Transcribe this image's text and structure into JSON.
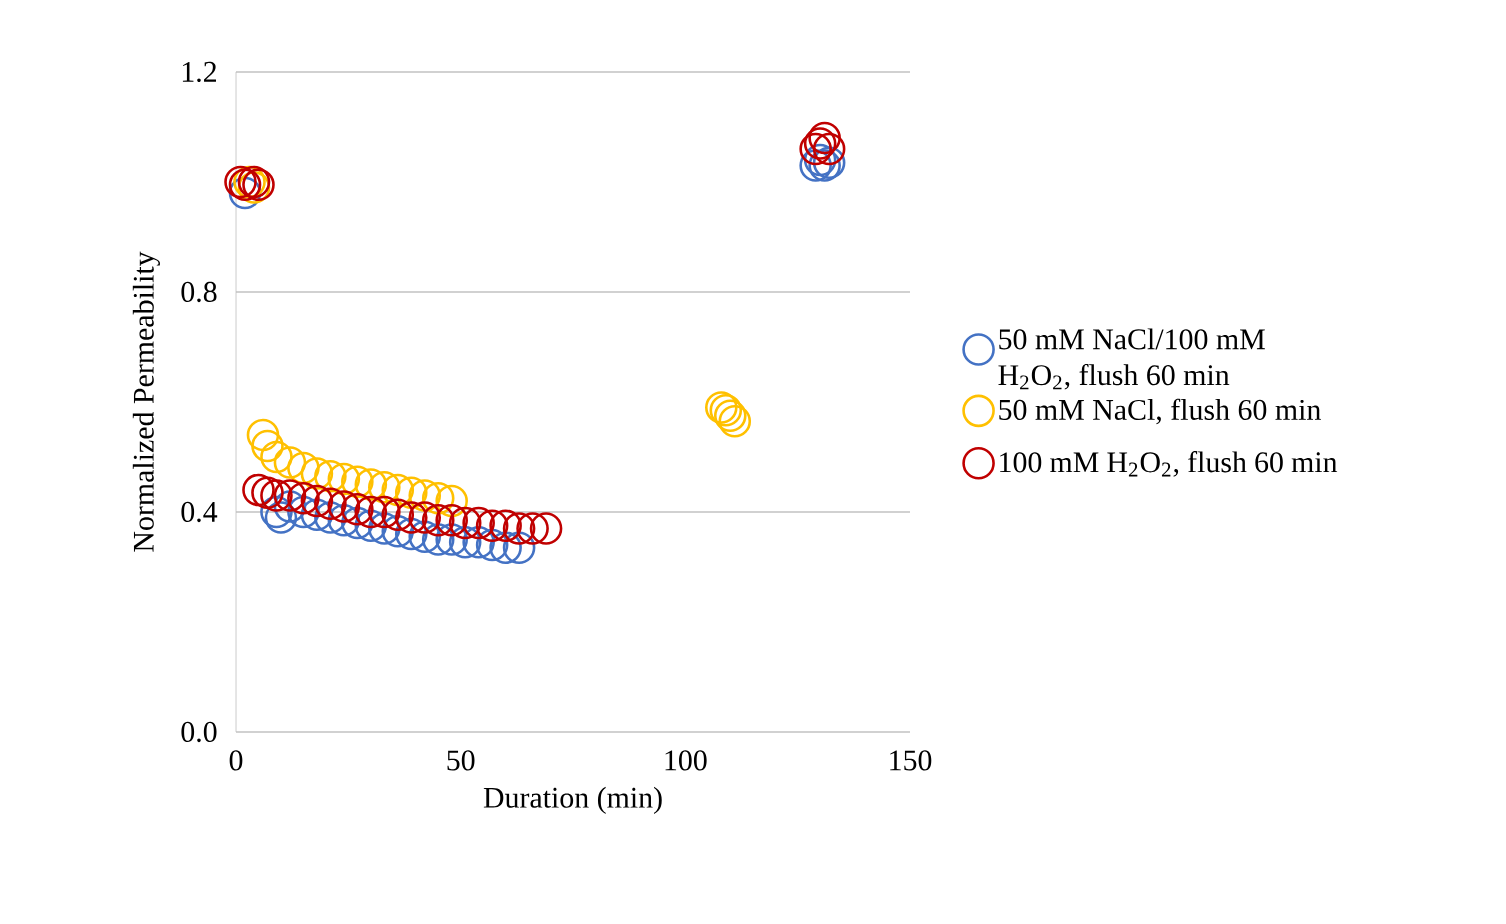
{
  "chart_data": {
    "type": "scatter",
    "xlabel": "Duration (min)",
    "ylabel": "Normalized Permeability",
    "xlim": [
      0,
      150
    ],
    "xticks": [
      0,
      50,
      100,
      150
    ],
    "ylim": [
      0,
      1.2
    ],
    "yticks": [
      {
        "value": 0,
        "label": "0.0"
      },
      {
        "value": 0.4,
        "label": "0.4"
      },
      {
        "value": 0.8,
        "label": "0.8"
      },
      {
        "value": 1.2,
        "label": "1.2"
      }
    ],
    "grid": "y",
    "legend": "right",
    "marker": "circle",
    "series": [
      {
        "name": "50 mM NaCl/100 mM H$_{2}$O$_{2}$, flush 60 min",
        "color": "#4472c4",
        "x": [
          2,
          9,
          10,
          12,
          15,
          18,
          21,
          24,
          27,
          30,
          33,
          36,
          39,
          42,
          45,
          48,
          51,
          54,
          57,
          60,
          63,
          129,
          130,
          131,
          132
        ],
        "values": [
          0.98,
          0.4,
          0.39,
          0.41,
          0.4,
          0.395,
          0.39,
          0.385,
          0.38,
          0.375,
          0.37,
          0.365,
          0.36,
          0.355,
          0.35,
          0.35,
          0.345,
          0.345,
          0.34,
          0.335,
          0.335,
          1.03,
          1.04,
          1.03,
          1.035
        ]
      },
      {
        "name": "50 mM NaCl, flush 60 min",
        "color": "#ffc000",
        "x": [
          3,
          4,
          6,
          7,
          9,
          12,
          15,
          18,
          21,
          24,
          27,
          30,
          33,
          36,
          39,
          42,
          45,
          48,
          108,
          109,
          110,
          111
        ],
        "values": [
          1.0,
          0.99,
          0.54,
          0.52,
          0.5,
          0.49,
          0.48,
          0.47,
          0.465,
          0.46,
          0.455,
          0.45,
          0.445,
          0.44,
          0.435,
          0.43,
          0.425,
          0.42,
          0.59,
          0.585,
          0.575,
          0.565
        ]
      },
      {
        "name": "100 mM H$_{2}$O$_{2}$, flush 60 min",
        "color": "#c00000",
        "x": [
          1,
          2,
          4,
          5,
          5,
          7,
          9,
          12,
          15,
          18,
          21,
          24,
          27,
          30,
          33,
          36,
          39,
          42,
          45,
          48,
          51,
          54,
          57,
          60,
          63,
          66,
          69,
          129,
          130,
          131,
          132
        ],
        "values": [
          1.0,
          0.995,
          1.0,
          0.995,
          0.44,
          0.435,
          0.43,
          0.43,
          0.425,
          0.42,
          0.415,
          0.41,
          0.405,
          0.4,
          0.4,
          0.395,
          0.39,
          0.39,
          0.385,
          0.385,
          0.38,
          0.38,
          0.375,
          0.375,
          0.37,
          0.37,
          0.37,
          1.06,
          1.07,
          1.08,
          1.06
        ]
      }
    ]
  }
}
